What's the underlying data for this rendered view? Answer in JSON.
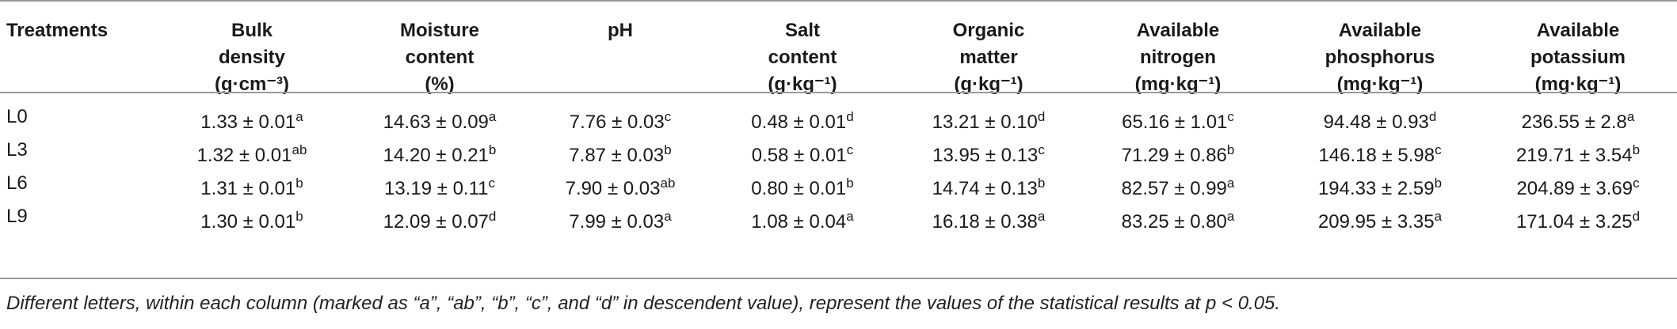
{
  "headers": [
    {
      "lines": [
        "Treatments"
      ]
    },
    {
      "lines": [
        "Bulk",
        "density",
        "(g·cm⁻³)"
      ]
    },
    {
      "lines": [
        "Moisture",
        "content",
        "(%)"
      ]
    },
    {
      "lines": [
        "pH"
      ]
    },
    {
      "lines": [
        "Salt",
        "content",
        "(g·kg⁻¹)"
      ]
    },
    {
      "lines": [
        "Organic",
        "matter",
        "(g·kg⁻¹)"
      ]
    },
    {
      "lines": [
        "Available",
        "nitrogen",
        "(mg·kg⁻¹)"
      ]
    },
    {
      "lines": [
        "Available",
        "phosphorus",
        "(mg·kg⁻¹)"
      ]
    },
    {
      "lines": [
        "Available",
        "potassium",
        "(mg·kg⁻¹)"
      ]
    }
  ],
  "rows": [
    {
      "treatment": "L0",
      "cells": [
        {
          "v": "1.33 ± 0.01",
          "s": "a"
        },
        {
          "v": "14.63 ± 0.09",
          "s": "a"
        },
        {
          "v": "7.76 ± 0.03",
          "s": "c"
        },
        {
          "v": "0.48 ± 0.01",
          "s": "d"
        },
        {
          "v": "13.21 ± 0.10",
          "s": "d"
        },
        {
          "v": "65.16 ± 1.01",
          "s": "c"
        },
        {
          "v": "94.48 ± 0.93",
          "s": "d"
        },
        {
          "v": "236.55 ± 2.8",
          "s": "a"
        }
      ]
    },
    {
      "treatment": "L3",
      "cells": [
        {
          "v": "1.32 ± 0.01",
          "s": "ab"
        },
        {
          "v": "14.20 ± 0.21",
          "s": "b"
        },
        {
          "v": "7.87 ± 0.03",
          "s": "b"
        },
        {
          "v": "0.58 ± 0.01",
          "s": "c"
        },
        {
          "v": "13.95 ± 0.13",
          "s": "c"
        },
        {
          "v": "71.29 ± 0.86",
          "s": "b"
        },
        {
          "v": "146.18 ± 5.98",
          "s": "c"
        },
        {
          "v": "219.71 ± 3.54",
          "s": "b"
        }
      ]
    },
    {
      "treatment": "L6",
      "cells": [
        {
          "v": "1.31 ± 0.01",
          "s": "b"
        },
        {
          "v": "13.19 ± 0.11",
          "s": "c"
        },
        {
          "v": "7.90 ± 0.03",
          "s": "ab"
        },
        {
          "v": "0.80 ± 0.01",
          "s": "b"
        },
        {
          "v": "14.74 ± 0.13",
          "s": "b"
        },
        {
          "v": "82.57 ± 0.99",
          "s": "a"
        },
        {
          "v": "194.33 ± 2.59",
          "s": "b"
        },
        {
          "v": "204.89 ± 3.69",
          "s": "c"
        }
      ]
    },
    {
      "treatment": "L9",
      "cells": [
        {
          "v": "1.30 ± 0.01",
          "s": "b"
        },
        {
          "v": "12.09 ± 0.07",
          "s": "d"
        },
        {
          "v": "7.99 ± 0.03",
          "s": "a"
        },
        {
          "v": "1.08 ± 0.04",
          "s": "a"
        },
        {
          "v": "16.18 ± 0.38",
          "s": "a"
        },
        {
          "v": "83.25 ± 0.80",
          "s": "a"
        },
        {
          "v": "209.95 ± 3.35",
          "s": "a"
        },
        {
          "v": "171.04 ± 3.25",
          "s": "d"
        }
      ]
    }
  ],
  "footnote": "Different letters, within each column (marked as “a”, “ab”, “b”, “c”, and “d” in descendent value), represent the values of the statistical results at p < 0.05."
}
